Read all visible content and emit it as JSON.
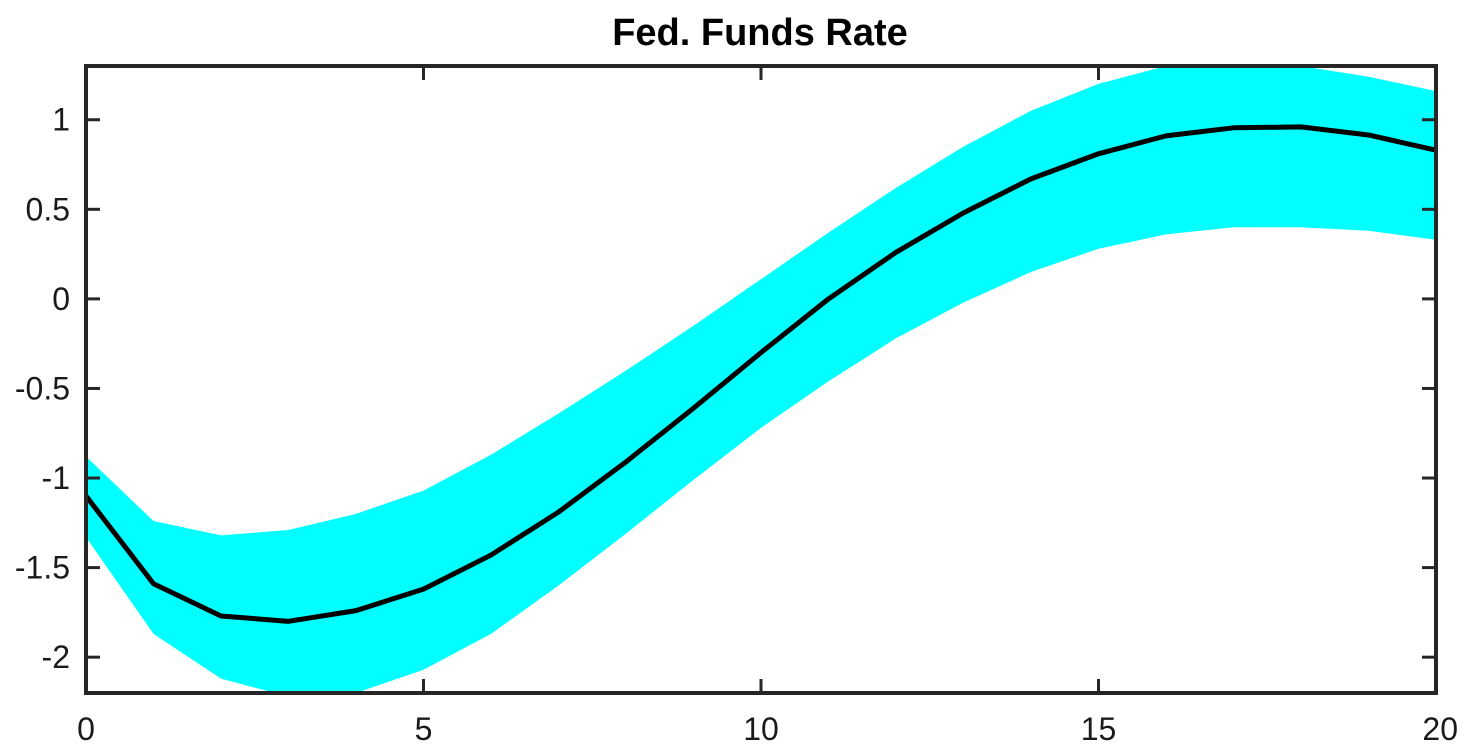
{
  "chart_data": {
    "type": "area",
    "title": "Fed. Funds Rate",
    "xlabel": "",
    "ylabel": "",
    "xlim": [
      0,
      20
    ],
    "ylim": [
      -2.2,
      1.3
    ],
    "xticks": [
      0,
      5,
      10,
      15,
      20
    ],
    "yticks": [
      -2,
      -1.5,
      -1,
      -0.5,
      0,
      0.5,
      1
    ],
    "xtick_labels": [
      "0",
      "5",
      "10",
      "15",
      "20"
    ],
    "ytick_labels": [
      "-2",
      "-1.5",
      "-1",
      "-0.5",
      "0",
      "0.5",
      "1"
    ],
    "grid": false,
    "legend": "none",
    "x": [
      0,
      1,
      2,
      3,
      4,
      5,
      6,
      7,
      8,
      9,
      10,
      11,
      12,
      13,
      14,
      15,
      16,
      17,
      18,
      19,
      20
    ],
    "series": [
      {
        "kind": "line",
        "color": "#000000",
        "values": [
          -1.1,
          -1.59,
          -1.77,
          -1.8,
          -1.74,
          -1.62,
          -1.43,
          -1.19,
          -0.91,
          -0.61,
          -0.3,
          0.0,
          0.26,
          0.48,
          0.67,
          0.81,
          0.91,
          0.955,
          0.96,
          0.915,
          0.83
        ]
      },
      {
        "kind": "band",
        "color": "#00FFFF",
        "upper": [
          -0.88,
          -1.24,
          -1.32,
          -1.29,
          -1.2,
          -1.07,
          -0.87,
          -0.64,
          -0.4,
          -0.15,
          0.11,
          0.37,
          0.62,
          0.85,
          1.05,
          1.2,
          1.3,
          1.33,
          1.3,
          1.24,
          1.16
        ],
        "lower": [
          -1.33,
          -1.87,
          -2.12,
          -2.22,
          -2.2,
          -2.07,
          -1.87,
          -1.6,
          -1.31,
          -1.01,
          -0.72,
          -0.46,
          -0.22,
          -0.02,
          0.15,
          0.28,
          0.36,
          0.4,
          0.4,
          0.38,
          0.33
        ]
      }
    ]
  }
}
